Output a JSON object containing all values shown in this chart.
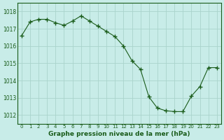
{
  "x": [
    0,
    1,
    2,
    3,
    4,
    5,
    6,
    7,
    8,
    9,
    10,
    11,
    12,
    13,
    14,
    15,
    16,
    17,
    18,
    19,
    20,
    21,
    22,
    23
  ],
  "y": [
    1016.6,
    1017.4,
    1017.55,
    1017.55,
    1017.35,
    1017.2,
    1017.45,
    1017.75,
    1017.45,
    1017.15,
    1016.85,
    1016.55,
    1016.0,
    1015.15,
    1014.65,
    1013.05,
    1012.4,
    1012.25,
    1012.2,
    1012.2,
    1013.1,
    1013.65,
    1014.75,
    1014.75
  ],
  "line_color": "#1a5c1a",
  "marker_color": "#1a5c1a",
  "bg_color": "#c8ece8",
  "grid_color": "#aad4cc",
  "xlabel": "Graphe pression niveau de la mer (hPa)",
  "xlabel_color": "#1a5c1a",
  "ylabel_ticks": [
    1012,
    1013,
    1014,
    1015,
    1016,
    1017,
    1018
  ],
  "xlim": [
    -0.5,
    23.5
  ],
  "ylim": [
    1011.5,
    1018.5
  ],
  "xtick_labels": [
    "0",
    "1",
    "2",
    "3",
    "4",
    "5",
    "6",
    "7",
    "8",
    "9",
    "10",
    "11",
    "12",
    "13",
    "14",
    "15",
    "16",
    "17",
    "18",
    "19",
    "20",
    "21",
    "22",
    "23"
  ]
}
